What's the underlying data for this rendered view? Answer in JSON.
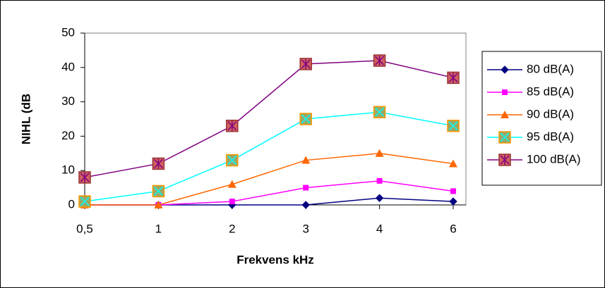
{
  "chart_data": {
    "type": "line",
    "x_label": "Frekvens kHz",
    "y_label": "NIHL (dB",
    "categories": [
      "0,5",
      "1",
      "2",
      "3",
      "4",
      "6"
    ],
    "ylim": [
      0,
      50
    ],
    "yticks": [
      0,
      10,
      20,
      30,
      40,
      50
    ],
    "grid": false,
    "legend": "right",
    "series": [
      {
        "name": "80 dB(A)",
        "color": "#000080",
        "marker": "diamond",
        "marker_fill": "#000080",
        "values": [
          0,
          0,
          0,
          0,
          2,
          1
        ]
      },
      {
        "name": "85 dB(A)",
        "color": "#ff00ff",
        "marker": "square",
        "marker_fill": "#ff00ff",
        "values": [
          0,
          0,
          1,
          5,
          7,
          4
        ]
      },
      {
        "name": "90 dB(A)",
        "color": "#ff6600",
        "marker": "triangle",
        "marker_fill": "#ff6600",
        "values": [
          0,
          0,
          6,
          13,
          15,
          12
        ]
      },
      {
        "name": "95 dB(A)",
        "color": "#00ffff",
        "marker": "square-x",
        "marker_fill": "#99a866",
        "values": [
          1,
          4,
          13,
          25,
          27,
          23
        ]
      },
      {
        "name": "100 dB(A)",
        "color": "#800080",
        "marker": "square-star",
        "marker_fill": "#d06060",
        "values": [
          8,
          12,
          23,
          41,
          42,
          37
        ]
      }
    ]
  }
}
